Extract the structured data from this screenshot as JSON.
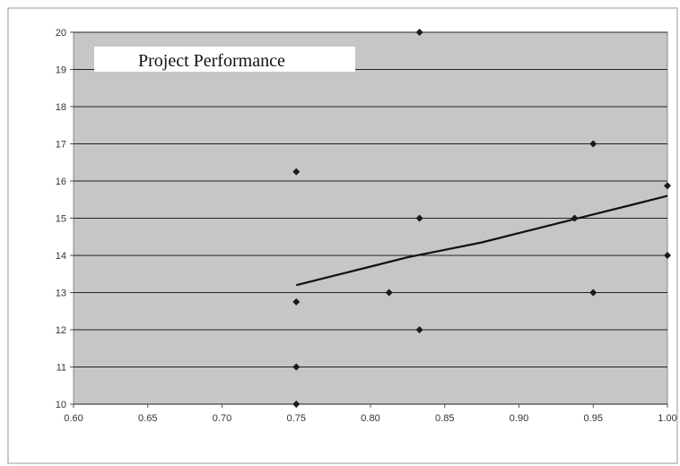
{
  "chart_data": {
    "type": "scatter",
    "title": "Project Performance",
    "xlabel": "",
    "ylabel": "",
    "xlim": [
      0.6,
      1.0
    ],
    "ylim": [
      10,
      20
    ],
    "x_ticks": [
      "0.60",
      "0.65",
      "0.70",
      "0.75",
      "0.80",
      "0.85",
      "0.90",
      "0.95",
      "1.00"
    ],
    "y_ticks": [
      "10",
      "11",
      "12",
      "13",
      "14",
      "15",
      "16",
      "17",
      "18",
      "19",
      "20"
    ],
    "grid": "horizontal",
    "legend": "none",
    "series": [
      {
        "type": "scatter",
        "marker": "diamond",
        "color": "#1a1a1a",
        "points": [
          {
            "x": 0.75,
            "y": 16.25
          },
          {
            "x": 0.75,
            "y": 12.75
          },
          {
            "x": 0.75,
            "y": 11.0
          },
          {
            "x": 0.75,
            "y": 10.0
          },
          {
            "x": 0.8125,
            "y": 13.0
          },
          {
            "x": 0.833,
            "y": 20.0
          },
          {
            "x": 0.833,
            "y": 15.0
          },
          {
            "x": 0.833,
            "y": 12.0
          },
          {
            "x": 0.9375,
            "y": 15.0
          },
          {
            "x": 0.95,
            "y": 17.0
          },
          {
            "x": 0.95,
            "y": 13.0
          },
          {
            "x": 1.0,
            "y": 15.875
          },
          {
            "x": 1.0,
            "y": 14.0
          }
        ]
      },
      {
        "type": "line",
        "color": "#111111",
        "points": [
          {
            "x": 0.75,
            "y": 13.2
          },
          {
            "x": 0.775,
            "y": 13.45
          },
          {
            "x": 0.8,
            "y": 13.7
          },
          {
            "x": 0.825,
            "y": 13.95
          },
          {
            "x": 0.85,
            "y": 14.15
          },
          {
            "x": 0.875,
            "y": 14.35
          },
          {
            "x": 0.9,
            "y": 14.6
          },
          {
            "x": 0.925,
            "y": 14.85
          },
          {
            "x": 0.95,
            "y": 15.1
          },
          {
            "x": 0.975,
            "y": 15.35
          },
          {
            "x": 1.0,
            "y": 15.6
          }
        ]
      }
    ],
    "colors": {
      "plot_background": "#c6c6c6",
      "gridline": "#222222",
      "frame": "#888888"
    }
  }
}
